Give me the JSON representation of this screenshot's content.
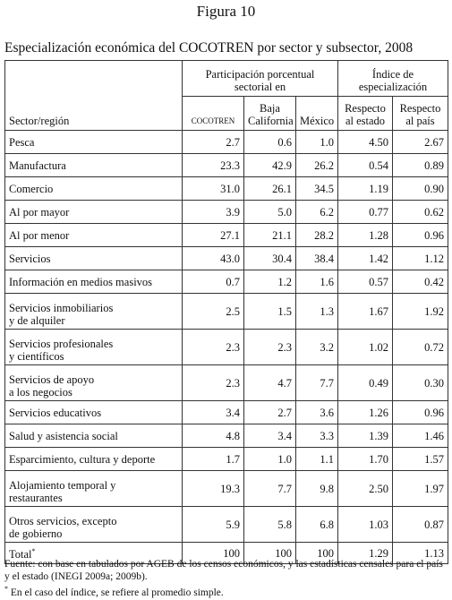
{
  "header": {
    "figure": "Figura 10",
    "title": "Especialización económica del COCOTREN por sector y subsector, 2008"
  },
  "table": {
    "group_headers": [
      [
        "Participación porcentual",
        "sectorial en"
      ],
      [
        "Índice de",
        "especialización"
      ]
    ],
    "column_headers": [
      [
        "Sector/región"
      ],
      [
        "COCOTREN"
      ],
      [
        "Baja",
        "California"
      ],
      [
        "México"
      ],
      [
        "Respecto",
        "al estado"
      ],
      [
        "Respecto",
        "al país"
      ]
    ],
    "rows": [
      {
        "label": [
          "Pesca"
        ],
        "cells": [
          "2.7",
          "0.6",
          "1.0",
          "4.50",
          "2.67"
        ]
      },
      {
        "label": [
          "Manufactura"
        ],
        "cells": [
          "23.3",
          "42.9",
          "26.2",
          "0.54",
          "0.89"
        ]
      },
      {
        "label": [
          "Comercio"
        ],
        "cells": [
          "31.0",
          "26.1",
          "34.5",
          "1.19",
          "0.90"
        ]
      },
      {
        "label": [
          "Al por mayor"
        ],
        "cells": [
          "3.9",
          "5.0",
          "6.2",
          "0.77",
          "0.62"
        ]
      },
      {
        "label": [
          "Al por menor"
        ],
        "cells": [
          "27.1",
          "21.1",
          "28.2",
          "1.28",
          "0.96"
        ]
      },
      {
        "label": [
          "Servicios"
        ],
        "cells": [
          "43.0",
          "30.4",
          "38.4",
          "1.42",
          "1.12"
        ]
      },
      {
        "label": [
          "Información en medios masivos"
        ],
        "cells": [
          "0.7",
          "1.2",
          "1.6",
          "0.57",
          "0.42"
        ]
      },
      {
        "label": [
          "Servicios inmobiliarios",
          "y de alquiler"
        ],
        "cells": [
          "2.5",
          "1.5",
          "1.3",
          "1.67",
          "1.92"
        ]
      },
      {
        "label": [
          "Servicios profesionales",
          "y científicos"
        ],
        "cells": [
          "2.3",
          "2.3",
          "3.2",
          "1.02",
          "0.72"
        ]
      },
      {
        "label": [
          "Servicios de apoyo",
          "a los negocios"
        ],
        "cells": [
          "2.3",
          "4.7",
          "7.7",
          "0.49",
          "0.30"
        ]
      },
      {
        "label": [
          "Servicios educativos"
        ],
        "cells": [
          "3.4",
          "2.7",
          "3.6",
          "1.26",
          "0.96"
        ]
      },
      {
        "label": [
          "Salud y asistencia social"
        ],
        "cells": [
          "4.8",
          "3.4",
          "3.3",
          "1.39",
          "1.46"
        ]
      },
      {
        "label": [
          "Esparcimiento, cultura y deporte"
        ],
        "cells": [
          "1.7",
          "1.0",
          "1.1",
          "1.70",
          "1.57"
        ]
      },
      {
        "label": [
          "Alojamiento temporal y",
          "restaurantes"
        ],
        "cells": [
          "19.3",
          "7.7",
          "9.8",
          "2.50",
          "1.97"
        ]
      },
      {
        "label": [
          "Otros servicios, excepto",
          "de gobierno"
        ],
        "cells": [
          "5.9",
          "5.8",
          "6.8",
          "1.03",
          "0.87"
        ]
      },
      {
        "label": [
          "Total"
        ],
        "mark": "*",
        "cells": [
          "100",
          "100",
          "100",
          "1.29",
          "1.13"
        ]
      }
    ]
  },
  "notes": {
    "source": "Fuente: con base en tabulados por AGEB de los censos económicos, y las estadísticas censales para el país y el estado (INEGI 2009a; 2009b).",
    "footnote_marker": "*",
    "footnote": "En el caso del índice, se refiere al promedio simple."
  }
}
